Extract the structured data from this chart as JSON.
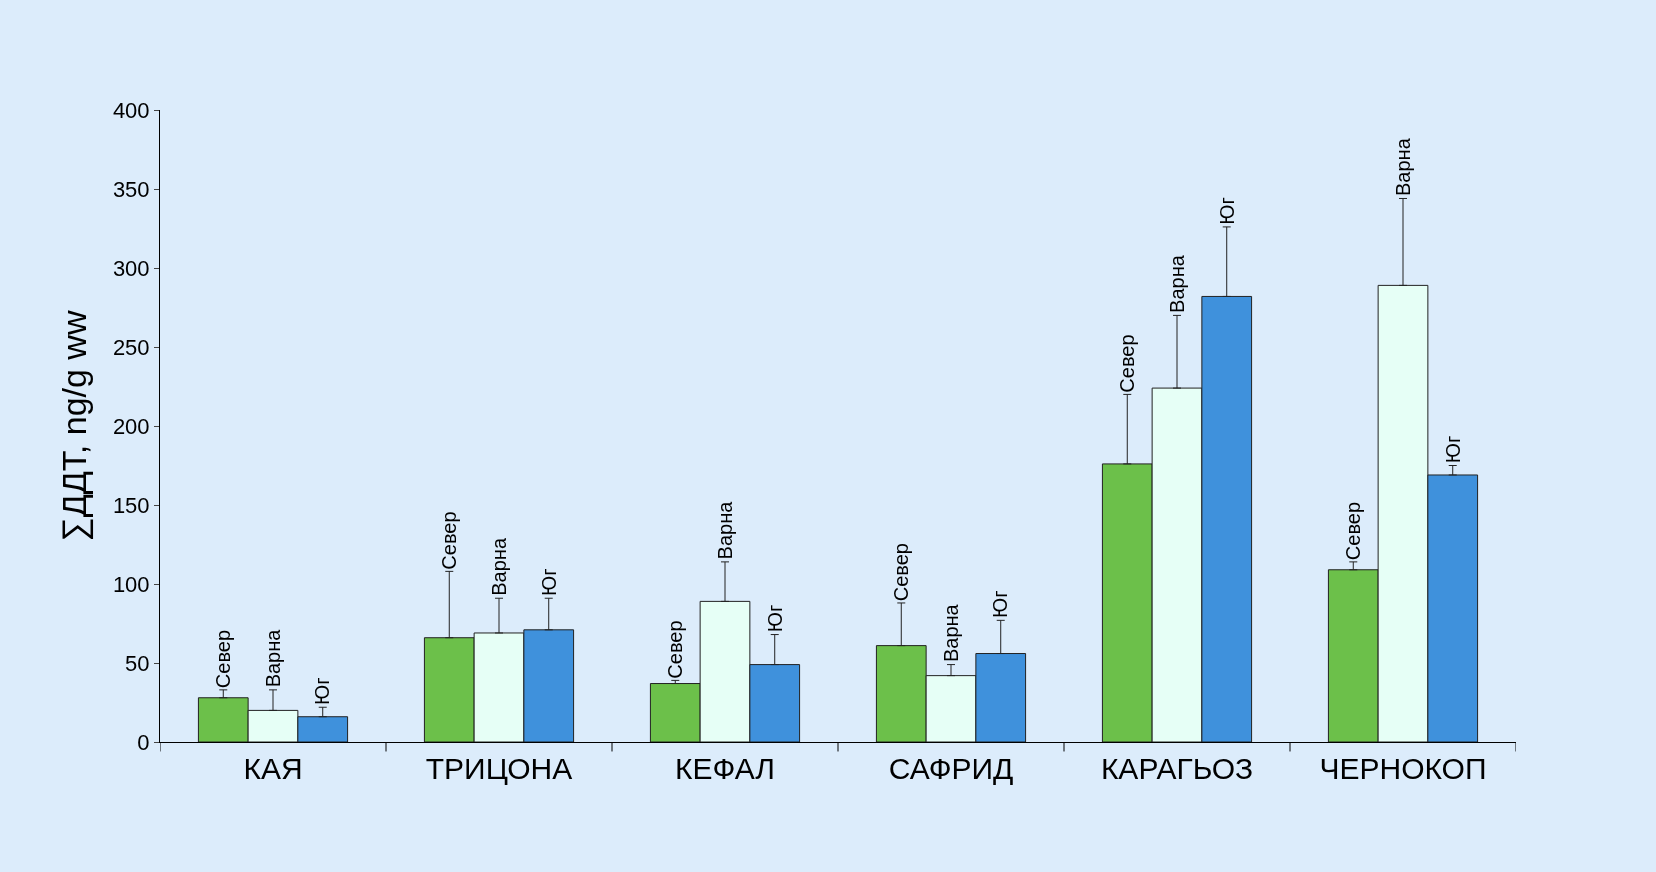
{
  "chart_data": {
    "type": "bar",
    "ylabel": "∑ДДТ, ng/g ww",
    "categories": [
      "КАЯ",
      "ТРИЦОНА",
      "КЕФАЛ",
      "САФРИД",
      "КАРАГЬОЗ",
      "ЧЕРНОКОП"
    ],
    "series": [
      {
        "name": "Север",
        "color": "#6cc04a",
        "values": [
          28,
          66,
          37,
          61,
          176,
          109
        ],
        "errors": [
          [
            28,
            33
          ],
          [
            66,
            108
          ],
          [
            37,
            39
          ],
          [
            61,
            88
          ],
          [
            176,
            220
          ],
          [
            109,
            114
          ]
        ]
      },
      {
        "name": "Варна",
        "color": "#e6fff6",
        "values": [
          20,
          69,
          89,
          42,
          224,
          289
        ],
        "errors": [
          [
            20,
            33
          ],
          [
            69,
            91
          ],
          [
            89,
            114
          ],
          [
            42,
            49
          ],
          [
            224,
            270
          ],
          [
            289,
            344
          ]
        ]
      },
      {
        "name": "Юг",
        "color": "#3f91dc",
        "values": [
          16,
          71,
          49,
          56,
          282,
          169
        ],
        "errors": [
          [
            16,
            22
          ],
          [
            71,
            91
          ],
          [
            49,
            68
          ],
          [
            56,
            77
          ],
          [
            282,
            326
          ],
          [
            169,
            175
          ]
        ]
      }
    ],
    "ylim": [
      0,
      400
    ],
    "yticks": [
      0,
      50,
      100,
      150,
      200,
      250,
      300,
      350,
      400
    ],
    "grid": false,
    "legend": false
  }
}
